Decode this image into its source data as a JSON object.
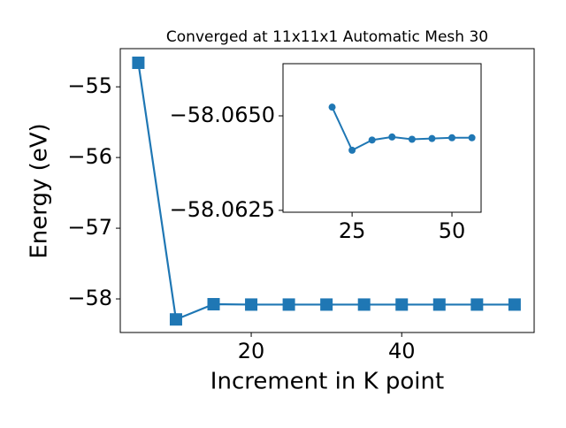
{
  "chart_data": [
    {
      "type": "line",
      "title": "Converged at 11x11x1 Automatic Mesh 30",
      "xlabel": "Increment in K point",
      "ylabel": "Energy (eV)",
      "x": [
        5,
        10,
        15,
        20,
        25,
        30,
        35,
        40,
        45,
        50,
        55
      ],
      "series": [
        {
          "color": "#1f77b4",
          "marker": "square",
          "values": [
            -54.66,
            -58.29,
            -58.075,
            -58.08,
            -58.08,
            -58.08,
            -58.08,
            -58.08,
            -58.08,
            -58.08,
            -58.08
          ]
        }
      ],
      "xlim": [
        2.6,
        57.6
      ],
      "ylim": [
        -58.475,
        -54.46
      ],
      "xticks": [
        20,
        40
      ],
      "yticks": [
        {
          "value": -58,
          "label": "−58"
        },
        {
          "value": -57,
          "label": "−57"
        },
        {
          "value": -56,
          "label": "−56"
        },
        {
          "value": -55,
          "label": "−55"
        }
      ]
    },
    {
      "type": "line",
      "x": [
        20,
        25,
        30,
        35,
        40,
        45,
        50,
        55
      ],
      "series": [
        {
          "color": "#1f77b4",
          "marker": "circle",
          "values": [
            -58.06523,
            -58.06409,
            -58.06436,
            -58.06444,
            -58.06438,
            -58.0644,
            -58.06442,
            -58.06442
          ]
        }
      ],
      "xlim": [
        7.7,
        57.3
      ],
      "ylim": [
        -58.06245,
        -58.06638
      ],
      "xticks": [
        25,
        50
      ],
      "yticks": [
        {
          "value": -58.0625,
          "label": "−58.0625"
        },
        {
          "value": -58.065,
          "label": "−58.0650"
        }
      ]
    }
  ]
}
